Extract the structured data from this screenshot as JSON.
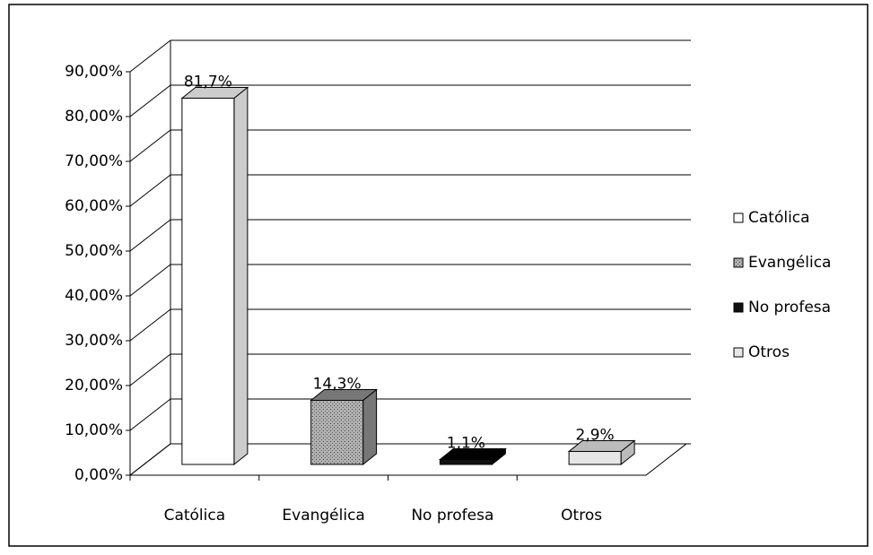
{
  "chart_data": {
    "type": "bar3d",
    "categories": [
      "Católica",
      "Evangélica",
      "No profesa",
      "Otros"
    ],
    "values": [
      81.7,
      14.3,
      1.1,
      2.9
    ],
    "value_labels": [
      "81,7%",
      "14,3%",
      "1,1%",
      "2,9%"
    ],
    "colors": [
      "#ffffff",
      "#a0a0a0",
      "#111111",
      "#e6e6e6"
    ],
    "ylim": [
      0,
      90
    ],
    "yticks": [
      {
        "value": 0,
        "label": "0,00%"
      },
      {
        "value": 10,
        "label": "10,00%"
      },
      {
        "value": 20,
        "label": "20,00%"
      },
      {
        "value": 30,
        "label": "30,00%"
      },
      {
        "value": 40,
        "label": "40,00%"
      },
      {
        "value": 50,
        "label": "50,00%"
      },
      {
        "value": 60,
        "label": "60,00%"
      },
      {
        "value": 70,
        "label": "70,00%"
      },
      {
        "value": 80,
        "label": "80,00%"
      },
      {
        "value": 90,
        "label": "90,00%"
      }
    ],
    "grid": true,
    "legend": "right"
  }
}
